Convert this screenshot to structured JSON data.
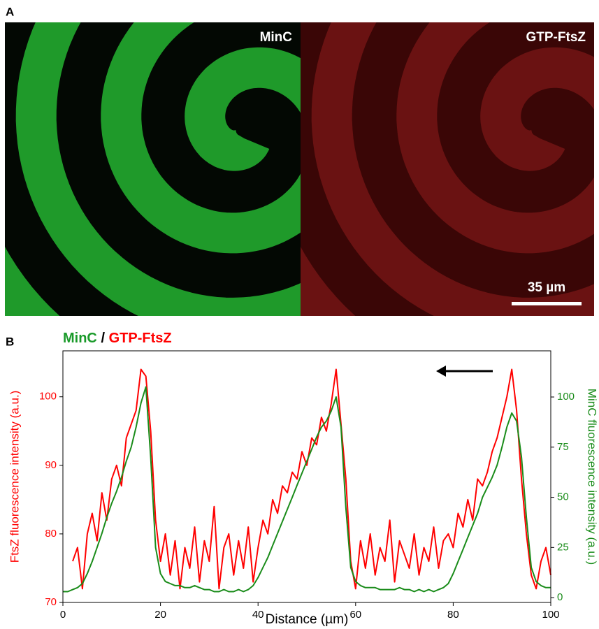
{
  "panel_a": {
    "label": "A",
    "left_image_label": "MinC",
    "right_image_label": "GTP-FtsZ",
    "scale_bar": "35 µm"
  },
  "panel_b": {
    "label": "B",
    "legend_separator": "/"
  },
  "chart_data": {
    "type": "line",
    "x_label": "Distance (µm)",
    "y_label": "FtsZ fluorescence intensity (a.u.)",
    "y2_label": "MinC fluorescence intensity (a.u.)",
    "x": [
      0,
      1,
      2,
      3,
      4,
      5,
      6,
      7,
      8,
      9,
      10,
      11,
      12,
      13,
      14,
      15,
      16,
      17,
      18,
      19,
      20,
      21,
      22,
      23,
      24,
      25,
      26,
      27,
      28,
      29,
      30,
      31,
      32,
      33,
      34,
      35,
      36,
      37,
      38,
      39,
      40,
      41,
      42,
      43,
      44,
      45,
      46,
      47,
      48,
      49,
      50,
      51,
      52,
      53,
      54,
      55,
      56,
      57,
      58,
      59,
      60,
      61,
      62,
      63,
      64,
      65,
      66,
      67,
      68,
      69,
      70,
      71,
      72,
      73,
      74,
      75,
      76,
      77,
      78,
      79,
      80,
      81,
      82,
      83,
      84,
      85,
      86,
      87,
      88,
      89,
      90,
      91,
      92,
      93,
      94,
      95,
      96,
      97,
      98,
      99,
      100
    ],
    "series": [
      {
        "name": "GTP-FtsZ",
        "color": "#ff0000",
        "axis": "y",
        "values": [
          null,
          null,
          76,
          78,
          72,
          80,
          83,
          79,
          86,
          82,
          88,
          90,
          87,
          94,
          96,
          98,
          104,
          103,
          95,
          82,
          76,
          80,
          74,
          79,
          72,
          78,
          75,
          81,
          73,
          79,
          76,
          84,
          72,
          78,
          80,
          74,
          79,
          75,
          81,
          73,
          78,
          82,
          80,
          85,
          83,
          87,
          86,
          89,
          88,
          92,
          90,
          94,
          93,
          97,
          95,
          99,
          104,
          96,
          88,
          76,
          72,
          79,
          75,
          80,
          74,
          78,
          76,
          82,
          73,
          79,
          77,
          75,
          80,
          74,
          78,
          76,
          81,
          75,
          79,
          80,
          78,
          83,
          81,
          85,
          82,
          88,
          87,
          89,
          92,
          94,
          97,
          100,
          104,
          98,
          88,
          80,
          74,
          72,
          76,
          78,
          74
        ]
      },
      {
        "name": "MinC",
        "color": "#1a8c1a",
        "axis": "y2",
        "values": [
          3,
          3,
          4,
          5,
          7,
          12,
          18,
          25,
          32,
          40,
          47,
          53,
          60,
          68,
          75,
          85,
          97,
          105,
          70,
          25,
          12,
          8,
          7,
          6,
          6,
          5,
          5,
          6,
          5,
          4,
          4,
          3,
          3,
          4,
          3,
          3,
          4,
          3,
          4,
          6,
          10,
          15,
          20,
          26,
          32,
          38,
          44,
          50,
          56,
          62,
          68,
          74,
          80,
          85,
          88,
          93,
          100,
          85,
          45,
          15,
          8,
          6,
          5,
          5,
          5,
          4,
          4,
          4,
          4,
          5,
          4,
          4,
          3,
          4,
          3,
          4,
          3,
          4,
          5,
          7,
          12,
          18,
          24,
          30,
          36,
          42,
          50,
          55,
          60,
          66,
          75,
          85,
          92,
          88,
          70,
          40,
          15,
          8,
          6,
          5,
          5
        ]
      }
    ],
    "xlim": [
      0,
      100
    ],
    "xticks": [
      0,
      20,
      40,
      60,
      80,
      100
    ],
    "ylim": [
      70,
      106.7
    ],
    "yticks": [
      70,
      80,
      90,
      100
    ],
    "y2lim": [
      -2.4,
      123
    ],
    "y2ticks": [
      0,
      25,
      50,
      75,
      100
    ]
  }
}
